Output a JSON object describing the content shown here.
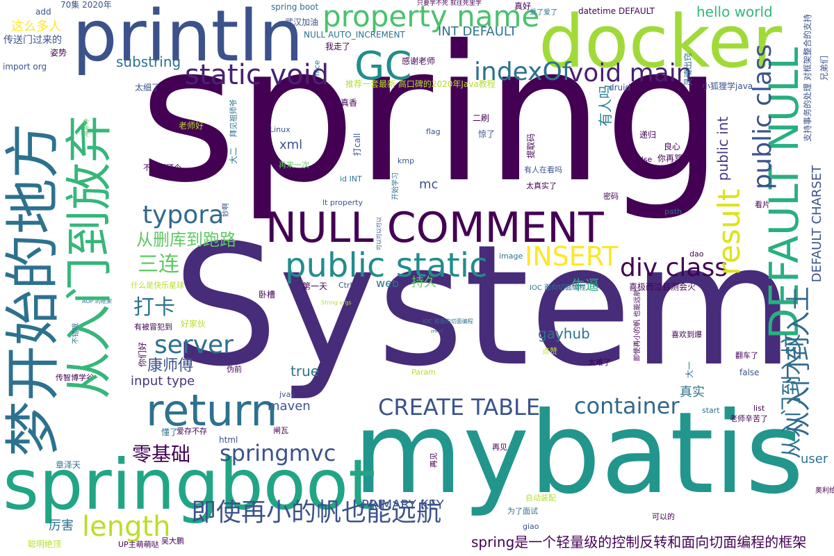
{
  "words": [
    {
      "text": "spring",
      "color": "#440154"
    },
    {
      "text": "System",
      "color": "#472c7a"
    },
    {
      "text": "mybatis",
      "color": "#22968c"
    },
    {
      "text": "docker",
      "color": "#a0da39"
    },
    {
      "text": "println",
      "color": "#3b528b"
    },
    {
      "text": "springboot",
      "color": "#21a585"
    },
    {
      "text": "梦开始的地方",
      "color": "#2c728e"
    },
    {
      "text": "从入门到放弃",
      "color": "#35b779"
    },
    {
      "text": "NULL COMMENT",
      "color": "#440154"
    },
    {
      "text": "DEFAULT NULL",
      "color": "#29af7f"
    },
    {
      "text": "从入门到入土",
      "color": "#31688e"
    },
    {
      "text": "return",
      "color": "#2c728e"
    },
    {
      "text": "public static",
      "color": "#228c8d"
    },
    {
      "text": "result",
      "color": "#dde318"
    },
    {
      "text": "GC",
      "color": "#228c8d"
    },
    {
      "text": "property name",
      "color": "#4ac16d"
    },
    {
      "text": "static void",
      "color": "#482173"
    },
    {
      "text": "void main",
      "color": "#481f70"
    },
    {
      "text": "indexOf",
      "color": "#2c728e"
    },
    {
      "text": "public class",
      "color": "#3b528b"
    },
    {
      "text": "从入门到入坟",
      "color": "#2d708e"
    },
    {
      "text": "即使再小的帆也能远航",
      "color": "#3b528b"
    },
    {
      "text": "length",
      "color": "#bade28"
    },
    {
      "text": "div class",
      "color": "#440154"
    },
    {
      "text": "INSERT",
      "color": "#fde725"
    },
    {
      "text": "typora",
      "color": "#31688e"
    },
    {
      "text": "server",
      "color": "#2c728e"
    },
    {
      "text": "CREATE TABLE",
      "color": "#3b528b"
    },
    {
      "text": "container",
      "color": "#31688e"
    },
    {
      "text": "springmvc",
      "color": "#3b528b"
    },
    {
      "text": "DEFAULT CHARSET",
      "color": "#3b528b"
    },
    {
      "text": "三连",
      "color": "#5ec962"
    },
    {
      "text": "从删库到跑路",
      "color": "#5ec962"
    },
    {
      "text": "零基础",
      "color": "#440154"
    },
    {
      "text": "打卡",
      "color": "#2c728e"
    },
    {
      "text": "康师傅",
      "color": "#3b528b"
    },
    {
      "text": "有人吗",
      "color": "#27808e"
    },
    {
      "text": "public int",
      "color": "#443983"
    },
    {
      "text": "hello world",
      "color": "#35b779"
    },
    {
      "text": "substring",
      "color": "#2c728e"
    },
    {
      "text": "INT DEFAULT",
      "color": "#2c728e"
    },
    {
      "text": "PRIMARY KEY",
      "color": "#3b528b"
    },
    {
      "text": "spring是一个轻量级的控制反转和面向切面编程的框架",
      "color": "#440154"
    },
    {
      "text": "input type",
      "color": "#46337e"
    },
    {
      "text": "gayhub",
      "color": "#2c728e"
    },
    {
      "text": "牛逼",
      "color": "#29af7f"
    },
    {
      "text": "true",
      "color": "#2c728e"
    },
    {
      "text": "maven",
      "color": "#3b528b"
    },
    {
      "text": "xml",
      "color": "#3b528b"
    },
    {
      "text": "mc",
      "color": "#3b528b"
    },
    {
      "text": "web",
      "color": "#2c728e"
    },
    {
      "text": "持久",
      "color": "#5ec962"
    },
    {
      "text": "真实",
      "color": "#2c728e"
    },
    {
      "text": "user",
      "color": "#2c728e"
    },
    {
      "text": "厉害",
      "color": "#2c728e"
    },
    {
      "text": "这么多人",
      "color": "#fde725"
    },
    {
      "text": "传送门过来的",
      "color": "#3b528b"
    },
    {
      "text": "datetime DEFAULT",
      "color": "#440154"
    },
    {
      "text": "NULL AUTO_INCREMENT",
      "color": "#2c728e"
    },
    {
      "text": "兄弟们",
      "color": "#3b528b"
    },
    {
      "text": "支持事务的处理 对框架整合的支持",
      "color": "#3b528b"
    },
    {
      "text": "推荐一套最新 高口碑的2020年Java教程",
      "color": "#b5de2b"
    },
    {
      "text": "import org",
      "color": "#3b528b"
    },
    {
      "text": "add",
      "color": "#3b528b"
    },
    {
      "text": "70集 2020年",
      "color": "#3b528b"
    },
    {
      "text": "spring boot",
      "color": "#2c728e"
    },
    {
      "text": "只要学不死 就往死里学",
      "color": "#440154"
    },
    {
      "text": "真好",
      "color": "#440154"
    },
    {
      "text": "爱了爱了",
      "color": "#2c728e"
    },
    {
      "text": "姿势",
      "color": "#440154"
    },
    {
      "text": "武汉加油",
      "color": "#3b528b"
    },
    {
      "text": "我走了",
      "color": "#440154"
    },
    {
      "text": "nice",
      "color": "#2c728e"
    },
    {
      "text": "感谢老师",
      "color": "#440154"
    },
    {
      "text": "灵魂出窍",
      "color": "#2c728e"
    },
    {
      "text": "太细了",
      "color": "#3b528b"
    },
    {
      "text": "druid",
      "color": "#3b528b"
    },
    {
      "text": "小狐狸学java",
      "color": "#3b528b"
    },
    {
      "text": "真香",
      "color": "#440154"
    },
    {
      "text": "老师好",
      "color": "#b5de2b"
    },
    {
      "text": "冲冲冲",
      "color": "#5ec962"
    },
    {
      "text": "二刷",
      "color": "#440154"
    },
    {
      "text": "拜见祖师爷",
      "color": "#2c728e"
    },
    {
      "text": "Linux",
      "color": "#3b528b"
    },
    {
      "text": "flag",
      "color": "#3b528b"
    },
    {
      "text": "惊了",
      "color": "#3b528b"
    },
    {
      "text": "递归",
      "color": "#440154"
    },
    {
      "text": "打call",
      "color": "#3b528b"
    },
    {
      "text": "提取码",
      "color": "#440154"
    },
    {
      "text": "良心",
      "color": "#440154"
    },
    {
      "text": "大二",
      "color": "#2c728e"
    },
    {
      "text": "不错啊顶个",
      "color": "#440154"
    },
    {
      "text": "再来一次",
      "color": "#5ec962"
    },
    {
      "text": "kmp",
      "color": "#3b528b"
    },
    {
      "text": "else",
      "color": "#440154"
    },
    {
      "text": "你再骂",
      "color": "#440154"
    },
    {
      "text": "开始学习",
      "color": "#2c728e"
    },
    {
      "text": "id INT",
      "color": "#2c728e"
    },
    {
      "text": "有人在看吗",
      "color": "#3b528b"
    },
    {
      "text": "太真实了",
      "color": "#440154"
    },
    {
      "text": "lt property",
      "color": "#3b528b"
    },
    {
      "text": "密码",
      "color": "#440154"
    },
    {
      "text": "看片",
      "color": "#440154"
    },
    {
      "text": "妙啊",
      "color": "#3b528b"
    },
    {
      "text": "up主",
      "color": "#440154"
    },
    {
      "text": "path",
      "color": "#2c728e"
    },
    {
      "text": "可以可以可以",
      "color": "#3b528b"
    },
    {
      "text": "image",
      "color": "#2c728e"
    },
    {
      "text": "dao",
      "color": "#440154"
    },
    {
      "text": "什么是快乐星球",
      "color": "#b5de2b"
    },
    {
      "text": "第一天",
      "color": "#440154"
    },
    {
      "text": "Ctrl",
      "color": "#3b528b"
    },
    {
      "text": "IOC 面向切面编程",
      "color": "#2c728e"
    },
    {
      "text": "喜极而泣目测会火",
      "color": "#440154"
    },
    {
      "text": "AOP 的框架",
      "color": "#2c728e"
    },
    {
      "text": "卧槽",
      "color": "#440154"
    },
    {
      "text": "String args",
      "color": "#b5de2b"
    },
    {
      "text": "不错哦",
      "color": "#2c728e"
    },
    {
      "text": "有被冒犯到",
      "color": "#440154"
    },
    {
      "text": "好家伙",
      "color": "#b5de2b"
    },
    {
      "text": "IOC 和面向切面编程",
      "color": "#2c728e"
    },
    {
      "text": "rm rf",
      "color": "#2c728e"
    },
    {
      "text": "即使再小的帆 也能远航",
      "color": "#440154"
    },
    {
      "text": "喜欢到爆",
      "color": "#440154"
    },
    {
      "text": "你们好",
      "color": "#440154"
    },
    {
      "text": "点赞",
      "color": "#b5de2b"
    },
    {
      "text": "翻车了",
      "color": "#440154"
    },
    {
      "text": "伪前",
      "color": "#440154"
    },
    {
      "text": "太难了",
      "color": "#440154"
    },
    {
      "text": "传智博学谷",
      "color": "#440154"
    },
    {
      "text": "Param",
      "color": "#b5de2b"
    },
    {
      "text": "大一",
      "color": "#2c728e"
    },
    {
      "text": "false",
      "color": "#3b528b"
    },
    {
      "text": "jvav",
      "color": "#3b528b"
    },
    {
      "text": "list",
      "color": "#440154"
    },
    {
      "text": "start",
      "color": "#2c728e"
    },
    {
      "text": "懂了",
      "color": "#2c728e"
    },
    {
      "text": "爱存不存",
      "color": "#440154"
    },
    {
      "text": "闸瓦",
      "color": "#440154"
    },
    {
      "text": "老师辛苦了",
      "color": "#440154"
    },
    {
      "text": "html",
      "color": "#3b528b"
    },
    {
      "text": "再见",
      "color": "#440154"
    },
    {
      "text": "章泽天",
      "color": "#2c728e"
    },
    {
      "text": "奥利给",
      "color": "#440154"
    },
    {
      "text": "自动装配",
      "color": "#b5de2b"
    },
    {
      "text": "为了面试",
      "color": "#2c728e"
    },
    {
      "text": "可以的",
      "color": "#440154"
    },
    {
      "text": "giao",
      "color": "#3b528b"
    },
    {
      "text": "聪明绝顶",
      "color": "#b5de2b"
    },
    {
      "text": "UP主萌萌哒",
      "color": "#440154"
    },
    {
      "text": "吴大鹏",
      "color": "#440154"
    },
    {
      "text": "完结撒花",
      "color": "#b5de2b"
    }
  ]
}
